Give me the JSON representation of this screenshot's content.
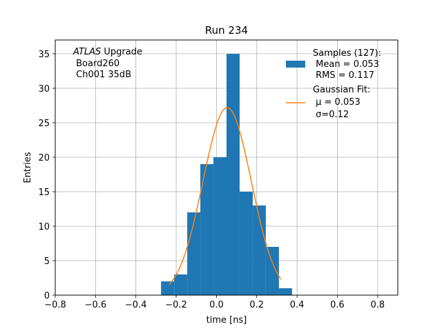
{
  "chart_data": {
    "type": "bar",
    "title": "Run 234",
    "xlabel": "time [ns]",
    "ylabel": "Entries",
    "xlim": [
      -0.8,
      0.9
    ],
    "ylim": [
      0,
      37
    ],
    "xticks": [
      -0.8,
      -0.6,
      -0.4,
      -0.2,
      0.0,
      0.2,
      0.4,
      0.6,
      0.8
    ],
    "xtick_labels": [
      "−0.8",
      "−0.6",
      "−0.4",
      "−0.2",
      "0.0",
      "0.2",
      "0.4",
      "0.6",
      "0.8"
    ],
    "yticks": [
      0,
      5,
      10,
      15,
      20,
      25,
      30,
      35
    ],
    "ytick_labels": [
      "0",
      "5",
      "10",
      "15",
      "20",
      "25",
      "30",
      "35"
    ],
    "grid": true,
    "annotation": {
      "italic": "ATLAS",
      "rest": " Upgrade",
      "lines": [
        " Board260",
        " Ch001 35dB"
      ]
    },
    "histogram": {
      "name": "Samples (127):",
      "color": "#1f77b4",
      "bin_edges": [
        -0.275,
        -0.21,
        -0.145,
        -0.08,
        -0.015,
        0.05,
        0.115,
        0.18,
        0.245,
        0.31,
        0.375
      ],
      "counts": [
        2,
        3,
        12,
        19,
        20,
        35,
        15,
        13,
        7,
        1
      ]
    },
    "fit": {
      "name": "Gaussian Fit:",
      "color": "#ff7f0e",
      "mu": 0.053,
      "sigma": 0.12,
      "amplitude": 27.2,
      "x_range": [
        -0.235,
        0.32
      ]
    },
    "legend": {
      "position": "upper right",
      "hist_lines": [
        "Samples (127):",
        " Mean = 0.053",
        " RMS = 0.117"
      ],
      "fit_lines": [
        "Gaussian Fit:",
        " μ = 0.053",
        " σ=0.12"
      ]
    }
  }
}
